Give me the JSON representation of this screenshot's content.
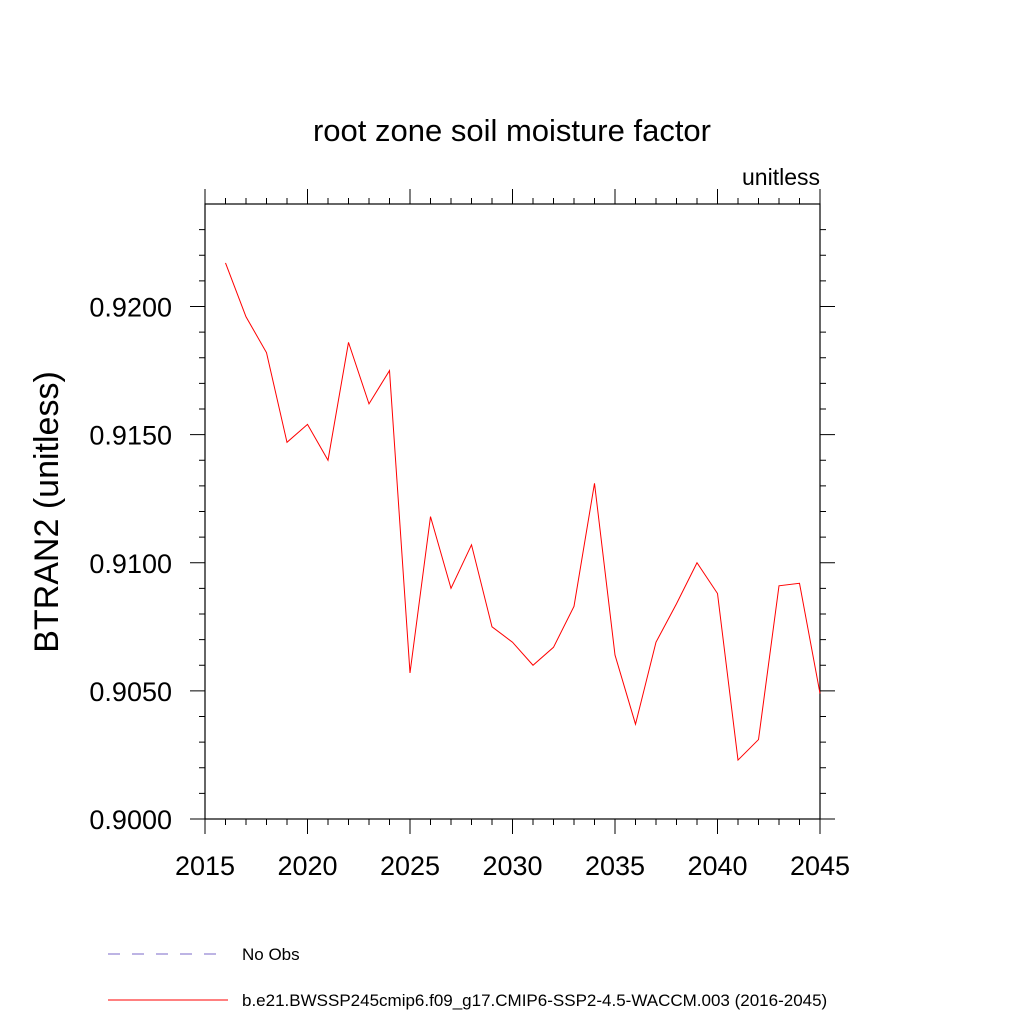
{
  "chart_data": {
    "type": "line",
    "title": "root zone soil moisture factor",
    "units": "unitless",
    "xlabel": "",
    "ylabel": "BTRAN2  (unitless)",
    "xlim": [
      2015,
      2045
    ],
    "ylim": [
      0.9,
      0.924
    ],
    "xticks": [
      2015,
      2020,
      2025,
      2030,
      2035,
      2040,
      2045
    ],
    "yticks": [
      0.9,
      0.905,
      0.91,
      0.915,
      0.92
    ],
    "ytick_labels": [
      "0.9000",
      "0.9050",
      "0.9100",
      "0.9150",
      "0.9200"
    ],
    "grid": false,
    "legend_position": "bottom",
    "series": [
      {
        "name": "b.e21.BWSSP245cmip6.f09_g17.CMIP6-SSP2-4.5-WACCM.003 (2016-2045)",
        "color": "#ff0000",
        "style": "solid",
        "x": [
          2016,
          2017,
          2018,
          2019,
          2020,
          2021,
          2022,
          2023,
          2024,
          2025,
          2026,
          2027,
          2028,
          2029,
          2030,
          2031,
          2032,
          2033,
          2034,
          2035,
          2036,
          2037,
          2038,
          2039,
          2040,
          2041,
          2042,
          2043,
          2044,
          2045
        ],
        "values": [
          0.9217,
          0.9196,
          0.9182,
          0.9147,
          0.9154,
          0.914,
          0.9186,
          0.9162,
          0.9175,
          0.9057,
          0.9118,
          0.909,
          0.9107,
          0.9075,
          0.9069,
          0.906,
          0.9067,
          0.9083,
          0.9131,
          0.9064,
          0.9037,
          0.9069,
          0.9084,
          0.91,
          0.9088,
          0.9023,
          0.9031,
          0.9091,
          0.9092,
          0.9049
        ]
      },
      {
        "name": "No Obs",
        "color": "#7b68c8",
        "style": "dashed",
        "x": [],
        "values": []
      }
    ]
  }
}
